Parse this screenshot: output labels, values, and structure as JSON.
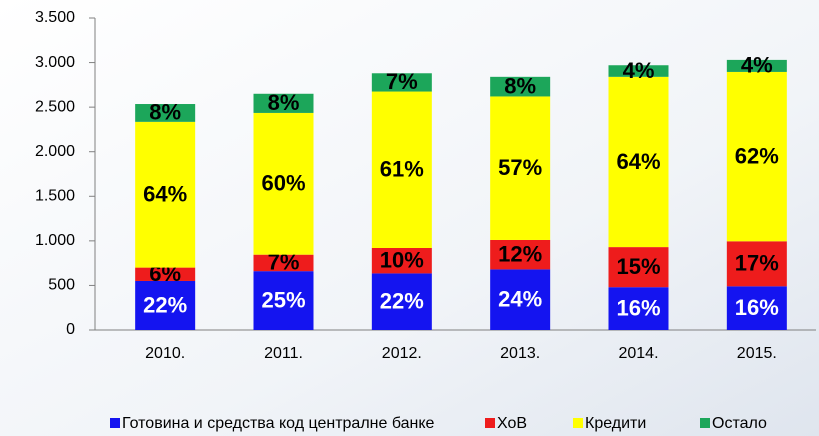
{
  "chart_data": {
    "type": "stacked-bar",
    "categories": [
      "2010.",
      "2011.",
      "2012.",
      "2013.",
      "2014.",
      "2015."
    ],
    "series": [
      {
        "name": "Готовина и средства код централне банке",
        "color": "#1414f0",
        "label_color": "#ffffff",
        "values": [
          550,
          660,
          635,
          680,
          480,
          490
        ],
        "share_labels": [
          "22%",
          "25%",
          "22%",
          "24%",
          "16%",
          "16%"
        ]
      },
      {
        "name": "ХоВ",
        "color": "#ee1c1c",
        "label_color": "#000000",
        "values": [
          150,
          185,
          285,
          330,
          450,
          505
        ],
        "share_labels": [
          "6%",
          "7%",
          "10%",
          "12%",
          "15%",
          "17%"
        ]
      },
      {
        "name": "Кредити",
        "color": "#ffff00",
        "label_color": "#000000",
        "values": [
          1635,
          1590,
          1755,
          1610,
          1910,
          1900
        ],
        "share_labels": [
          "64%",
          "60%",
          "61%",
          "57%",
          "64%",
          "62%"
        ]
      },
      {
        "name": "Остало",
        "color": "#1ca65a",
        "label_color": "#000000",
        "values": [
          200,
          215,
          205,
          220,
          130,
          135
        ],
        "share_labels": [
          "8%",
          "8%",
          "7%",
          "8%",
          "4%",
          "4%"
        ]
      }
    ],
    "ylim": [
      0,
      3500
    ],
    "yticks": [
      0,
      500,
      {
        "value": 1000,
        "label": "1.000"
      },
      {
        "value": 1500,
        "label": "1.500"
      },
      {
        "value": 2000,
        "label": "2.000"
      },
      {
        "value": 2500,
        "label": "2.500"
      },
      {
        "value": 3000,
        "label": "3.000"
      },
      {
        "value": 3500,
        "label": "3.500"
      }
    ],
    "legend": "bottom"
  }
}
